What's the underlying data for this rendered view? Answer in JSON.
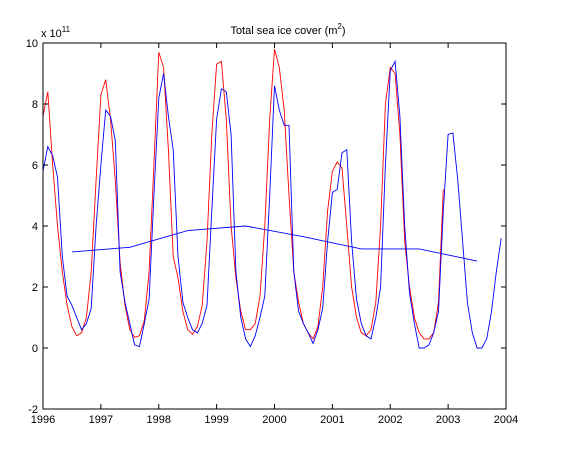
{
  "chart_data": {
    "type": "line",
    "title_main": "Total sea ice cover (m",
    "title_sup": "2",
    "title_end": ")",
    "y_exponent_base": "x 10",
    "y_exponent_power": "11",
    "xlim": [
      1996,
      2004
    ],
    "ylim": [
      -2,
      10
    ],
    "x_ticks": [
      1996,
      1997,
      1998,
      1999,
      2000,
      2001,
      2002,
      2003,
      2004
    ],
    "y_ticks": [
      -2,
      0,
      2,
      4,
      6,
      8,
      10
    ],
    "colors": {
      "red": "#ff0000",
      "blue": "#0000ff",
      "axis": "#000000"
    },
    "series": [
      {
        "color": "red",
        "points": [
          [
            1996.0,
            7.6
          ],
          [
            1996.083,
            8.4
          ],
          [
            1996.167,
            6.0
          ],
          [
            1996.25,
            4.0
          ],
          [
            1996.333,
            2.5
          ],
          [
            1996.417,
            1.4
          ],
          [
            1996.5,
            0.7
          ],
          [
            1996.583,
            0.4
          ],
          [
            1996.667,
            0.5
          ],
          [
            1996.75,
            1.0
          ],
          [
            1996.833,
            2.5
          ],
          [
            1996.917,
            5.5
          ],
          [
            1997.0,
            8.3
          ],
          [
            1997.083,
            8.8
          ],
          [
            1997.167,
            7.5
          ],
          [
            1997.25,
            5.5
          ],
          [
            1997.333,
            2.8
          ],
          [
            1997.417,
            1.4
          ],
          [
            1997.5,
            0.6
          ],
          [
            1997.583,
            0.35
          ],
          [
            1997.667,
            0.4
          ],
          [
            1997.75,
            0.9
          ],
          [
            1997.833,
            2.5
          ],
          [
            1997.917,
            6.0
          ],
          [
            1998.0,
            9.7
          ],
          [
            1998.083,
            9.2
          ],
          [
            1998.167,
            6.5
          ],
          [
            1998.25,
            3.0
          ],
          [
            1998.333,
            2.3
          ],
          [
            1998.417,
            1.2
          ],
          [
            1998.5,
            0.6
          ],
          [
            1998.583,
            0.45
          ],
          [
            1998.667,
            0.7
          ],
          [
            1998.75,
            1.4
          ],
          [
            1998.833,
            3.5
          ],
          [
            1998.917,
            7.0
          ],
          [
            1999.0,
            9.3
          ],
          [
            1999.083,
            9.4
          ],
          [
            1999.167,
            7.5
          ],
          [
            1999.25,
            4.0
          ],
          [
            1999.333,
            2.3
          ],
          [
            1999.417,
            1.2
          ],
          [
            1999.5,
            0.6
          ],
          [
            1999.583,
            0.6
          ],
          [
            1999.667,
            0.8
          ],
          [
            1999.75,
            1.7
          ],
          [
            1999.833,
            4.0
          ],
          [
            1999.917,
            7.5
          ],
          [
            2000.0,
            9.8
          ],
          [
            2000.083,
            9.2
          ],
          [
            2000.167,
            7.8
          ],
          [
            2000.25,
            5.0
          ],
          [
            2000.333,
            2.5
          ],
          [
            2000.417,
            1.5
          ],
          [
            2000.5,
            0.8
          ],
          [
            2000.583,
            0.5
          ],
          [
            2000.667,
            0.3
          ],
          [
            2000.75,
            0.7
          ],
          [
            2000.833,
            2.0
          ],
          [
            2000.917,
            4.5
          ],
          [
            2001.0,
            5.8
          ],
          [
            2001.083,
            6.1
          ],
          [
            2001.167,
            5.9
          ],
          [
            2001.25,
            4.0
          ],
          [
            2001.333,
            2.0
          ],
          [
            2001.417,
            1.0
          ],
          [
            2001.5,
            0.5
          ],
          [
            2001.583,
            0.4
          ],
          [
            2001.667,
            0.6
          ],
          [
            2001.75,
            1.5
          ],
          [
            2001.833,
            4.0
          ],
          [
            2001.917,
            8.0
          ],
          [
            2002.0,
            9.2
          ],
          [
            2002.083,
            9.0
          ],
          [
            2002.167,
            7.0
          ],
          [
            2002.25,
            3.5
          ],
          [
            2002.333,
            2.0
          ],
          [
            2002.417,
            1.0
          ],
          [
            2002.5,
            0.5
          ],
          [
            2002.583,
            0.3
          ],
          [
            2002.667,
            0.3
          ],
          [
            2002.75,
            0.5
          ],
          [
            2002.833,
            1.5
          ],
          [
            2002.917,
            5.2
          ]
        ]
      },
      {
        "color": "blue",
        "points": [
          [
            1996.0,
            5.8
          ],
          [
            1996.083,
            6.6
          ],
          [
            1996.167,
            6.3
          ],
          [
            1996.25,
            5.6
          ],
          [
            1996.333,
            3.0
          ],
          [
            1996.417,
            1.7
          ],
          [
            1996.5,
            1.4
          ],
          [
            1996.583,
            1.0
          ],
          [
            1996.667,
            0.6
          ],
          [
            1996.75,
            0.8
          ],
          [
            1996.833,
            1.3
          ],
          [
            1996.917,
            4.0
          ],
          [
            1997.0,
            6.0
          ],
          [
            1997.083,
            7.8
          ],
          [
            1997.167,
            7.6
          ],
          [
            1997.25,
            6.8
          ],
          [
            1997.333,
            2.5
          ],
          [
            1997.417,
            1.5
          ],
          [
            1997.5,
            0.8
          ],
          [
            1997.583,
            0.1
          ],
          [
            1997.667,
            0.05
          ],
          [
            1997.75,
            0.8
          ],
          [
            1997.833,
            1.6
          ],
          [
            1997.917,
            5.0
          ],
          [
            1998.0,
            8.2
          ],
          [
            1998.083,
            9.0
          ],
          [
            1998.167,
            7.6
          ],
          [
            1998.25,
            6.5
          ],
          [
            1998.333,
            3.0
          ],
          [
            1998.417,
            1.5
          ],
          [
            1998.5,
            1.0
          ],
          [
            1998.583,
            0.6
          ],
          [
            1998.667,
            0.5
          ],
          [
            1998.75,
            0.8
          ],
          [
            1998.833,
            1.4
          ],
          [
            1998.917,
            4.5
          ],
          [
            1999.0,
            7.5
          ],
          [
            1999.083,
            8.5
          ],
          [
            1999.167,
            8.4
          ],
          [
            1999.25,
            7.0
          ],
          [
            1999.333,
            2.5
          ],
          [
            1999.417,
            1.0
          ],
          [
            1999.5,
            0.3
          ],
          [
            1999.583,
            0.05
          ],
          [
            1999.667,
            0.4
          ],
          [
            1999.75,
            1.0
          ],
          [
            1999.833,
            1.7
          ],
          [
            1999.917,
            5.0
          ],
          [
            2000.0,
            8.6
          ],
          [
            2000.083,
            7.8
          ],
          [
            2000.167,
            7.3
          ],
          [
            2000.25,
            7.3
          ],
          [
            2000.333,
            2.5
          ],
          [
            2000.417,
            1.2
          ],
          [
            2000.5,
            0.8
          ],
          [
            2000.583,
            0.5
          ],
          [
            2000.667,
            0.15
          ],
          [
            2000.75,
            0.6
          ],
          [
            2000.833,
            1.3
          ],
          [
            2000.917,
            3.5
          ],
          [
            2001.0,
            5.1
          ],
          [
            2001.083,
            5.2
          ],
          [
            2001.167,
            6.4
          ],
          [
            2001.25,
            6.5
          ],
          [
            2001.333,
            3.5
          ],
          [
            2001.417,
            1.6
          ],
          [
            2001.5,
            0.8
          ],
          [
            2001.583,
            0.4
          ],
          [
            2001.667,
            0.3
          ],
          [
            2001.75,
            1.0
          ],
          [
            2001.833,
            2.0
          ],
          [
            2001.917,
            6.0
          ],
          [
            2002.0,
            9.1
          ],
          [
            2002.083,
            9.4
          ],
          [
            2002.167,
            7.6
          ],
          [
            2002.25,
            4.0
          ],
          [
            2002.333,
            1.8
          ],
          [
            2002.417,
            0.8
          ],
          [
            2002.5,
            0.0
          ],
          [
            2002.583,
            0.0
          ],
          [
            2002.667,
            0.1
          ],
          [
            2002.75,
            0.5
          ],
          [
            2002.833,
            1.2
          ],
          [
            2002.917,
            4.5
          ],
          [
            2003.0,
            7.0
          ],
          [
            2003.083,
            7.05
          ],
          [
            2003.167,
            5.5
          ],
          [
            2003.25,
            3.5
          ],
          [
            2003.333,
            1.5
          ],
          [
            2003.417,
            0.5
          ],
          [
            2003.5,
            0.0
          ],
          [
            2003.583,
            0.0
          ],
          [
            2003.667,
            0.3
          ],
          [
            2003.75,
            1.2
          ],
          [
            2003.833,
            2.5
          ],
          [
            2003.917,
            3.6
          ]
        ]
      },
      {
        "color": "blue",
        "points": [
          [
            1996.5,
            3.15
          ],
          [
            1997.5,
            3.3
          ],
          [
            1998.5,
            3.85
          ],
          [
            1999.5,
            4.0
          ],
          [
            2000.5,
            3.65
          ],
          [
            2001.5,
            3.25
          ],
          [
            2002.5,
            3.25
          ],
          [
            2003.5,
            2.85
          ]
        ]
      }
    ]
  }
}
